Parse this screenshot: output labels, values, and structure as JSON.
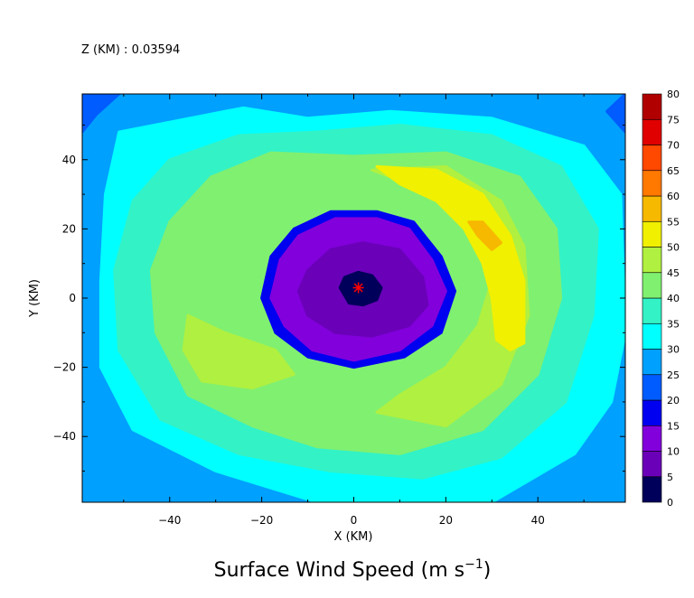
{
  "chart_data": {
    "type": "heatmap",
    "subtitle": "Z (KM) : 0.03594",
    "title_text": "Surface Wind Speed (m s",
    "title_exponent": "−1",
    "title_close": ")",
    "xlabel": "X (KM)",
    "ylabel": "Y (KM)",
    "xlim": [
      -59,
      59
    ],
    "ylim": [
      -59,
      59
    ],
    "xticks": [
      -40,
      -20,
      0,
      20,
      40
    ],
    "xtick_labels": [
      "−40",
      "−20",
      "0",
      "20",
      "40"
    ],
    "yticks": [
      -40,
      -20,
      0,
      20,
      40
    ],
    "ytick_labels": [
      "−40",
      "−20",
      "0",
      "20",
      "40"
    ],
    "colorbar": {
      "levels": [
        0,
        5,
        10,
        15,
        20,
        25,
        30,
        35,
        40,
        45,
        50,
        55,
        60,
        65,
        70,
        75,
        80
      ],
      "labels": [
        "0",
        "5",
        "10",
        "15",
        "20",
        "25",
        "30",
        "35",
        "40",
        "45",
        "50",
        "55",
        "60",
        "65",
        "70",
        "75",
        "80"
      ],
      "colors": [
        "#00005a",
        "#6a00b8",
        "#8200dc",
        "#0000f0",
        "#005cff",
        "#00a0ff",
        "#00ffff",
        "#33f2c6",
        "#80f070",
        "#b0f040",
        "#f0f000",
        "#f7b800",
        "#ff7800",
        "#ff4800",
        "#e00000",
        "#b00000"
      ]
    },
    "center_marker": {
      "x": 1,
      "y": 3,
      "color": "#ff0000"
    },
    "contours": [
      {
        "level_range": [
          25,
          30
        ],
        "polygons": [
          [
            [
              -59,
              -59
            ],
            [
              59,
              -59
            ],
            [
              59,
              59
            ],
            [
              -59,
              59
            ]
          ]
        ]
      },
      {
        "level_range": [
          20,
          25
        ],
        "polygons": [
          [
            [
              -59,
              59
            ],
            [
              -51,
              59
            ],
            [
              -56,
              53
            ],
            [
              -59,
              48
            ]
          ],
          [
            [
              59,
              59
            ],
            [
              59,
              48
            ],
            [
              55,
              54
            ]
          ]
        ]
      },
      {
        "level_range": [
          30,
          35
        ],
        "polygons": [
          [
            [
              -51,
              48
            ],
            [
              -24,
              55
            ],
            [
              -10,
              52
            ],
            [
              8,
              54
            ],
            [
              30,
              52
            ],
            [
              50,
              44
            ],
            [
              58,
              30
            ],
            [
              59,
              -10
            ],
            [
              56,
              -30
            ],
            [
              48,
              -45
            ],
            [
              30,
              -59
            ],
            [
              -8,
              -59
            ],
            [
              -30,
              -50
            ],
            [
              -48,
              -38
            ],
            [
              -55,
              -20
            ],
            [
              -55,
              5
            ],
            [
              -54,
              30
            ]
          ]
        ]
      },
      {
        "level_range": [
          35,
          40
        ],
        "polygons": [
          [
            [
              -40,
              40
            ],
            [
              -25,
              47
            ],
            [
              -8,
              48
            ],
            [
              10,
              50
            ],
            [
              30,
              47
            ],
            [
              45,
              38
            ],
            [
              53,
              20
            ],
            [
              52,
              -5
            ],
            [
              46,
              -30
            ],
            [
              32,
              -46
            ],
            [
              15,
              -52
            ],
            [
              -5,
              -50
            ],
            [
              -25,
              -45
            ],
            [
              -42,
              -35
            ],
            [
              -51,
              -15
            ],
            [
              -52,
              8
            ],
            [
              -48,
              28
            ]
          ]
        ]
      },
      {
        "level_range": [
          40,
          45
        ],
        "polygons": [
          [
            [
              -31,
              35
            ],
            [
              -18,
              42
            ],
            [
              0,
              41
            ],
            [
              20,
              42
            ],
            [
              36,
              35
            ],
            [
              44,
              20
            ],
            [
              45,
              0
            ],
            [
              40,
              -22
            ],
            [
              28,
              -38
            ],
            [
              10,
              -45
            ],
            [
              -8,
              -43
            ],
            [
              -22,
              -37
            ],
            [
              -36,
              -28
            ],
            [
              -43,
              -10
            ],
            [
              -44,
              8
            ],
            [
              -40,
              22
            ]
          ]
        ]
      },
      {
        "level_range": [
          45,
          50
        ],
        "polygons": [
          [
            [
              -36,
              -5
            ],
            [
              -28,
              -10
            ],
            [
              -17,
              -15
            ],
            [
              -13,
              -22
            ],
            [
              -22,
              -26
            ],
            [
              -33,
              -24
            ],
            [
              -37,
              -15
            ]
          ],
          [
            [
              5,
              -33
            ],
            [
              20,
              -37
            ],
            [
              32,
              -25
            ],
            [
              38,
              -5
            ],
            [
              37,
              15
            ],
            [
              32,
              28
            ],
            [
              20,
              38
            ],
            [
              4,
              37
            ],
            [
              12,
              33
            ],
            [
              22,
              28
            ],
            [
              28,
              18
            ],
            [
              30,
              5
            ],
            [
              27,
              -8
            ],
            [
              20,
              -20
            ],
            [
              10,
              -28
            ]
          ]
        ]
      },
      {
        "level_range": [
          50,
          55
        ],
        "polygons": [
          [
            [
              5,
              38
            ],
            [
              18,
              37
            ],
            [
              28,
              30
            ],
            [
              34,
              18
            ],
            [
              37,
              5
            ],
            [
              37,
              -13
            ],
            [
              34,
              -15
            ],
            [
              31,
              -12
            ],
            [
              30,
              0
            ],
            [
              28,
              10
            ],
            [
              24,
              20
            ],
            [
              18,
              28
            ],
            [
              10,
              33
            ]
          ]
        ]
      },
      {
        "level_range": [
          55,
          60
        ],
        "polygons": [
          [
            [
              25,
              22
            ],
            [
              28,
              22
            ],
            [
              32,
              16
            ],
            [
              30,
              14
            ],
            [
              27,
              18
            ]
          ]
        ]
      },
      {
        "level_range": [
          15,
          20
        ],
        "polygons": [
          [
            [
              -18,
              12
            ],
            [
              -13,
              20
            ],
            [
              -5,
              25
            ],
            [
              5,
              25
            ],
            [
              13,
              22
            ],
            [
              19,
              12
            ],
            [
              22,
              2
            ],
            [
              19,
              -10
            ],
            [
              11,
              -17
            ],
            [
              0,
              -20
            ],
            [
              -10,
              -17
            ],
            [
              -17,
              -10
            ],
            [
              -20,
              0
            ]
          ]
        ]
      },
      {
        "level_range": [
          10,
          15
        ],
        "polygons": [
          [
            [
              -16,
              11
            ],
            [
              -12,
              18
            ],
            [
              -4,
              23
            ],
            [
              5,
              23
            ],
            [
              12,
              20
            ],
            [
              17,
              11
            ],
            [
              20,
              2
            ],
            [
              17,
              -8
            ],
            [
              10,
              -15
            ],
            [
              0,
              -18
            ],
            [
              -9,
              -15
            ],
            [
              -15,
              -8
            ],
            [
              -18,
              0
            ]
          ]
        ]
      },
      {
        "level_range": [
          5,
          10
        ],
        "polygons": [
          [
            [
              -10,
              8
            ],
            [
              -5,
              14
            ],
            [
              2,
              16
            ],
            [
              10,
              14
            ],
            [
              15,
              6
            ],
            [
              16,
              -2
            ],
            [
              12,
              -8
            ],
            [
              4,
              -11
            ],
            [
              -4,
              -10
            ],
            [
              -10,
              -5
            ],
            [
              -12,
              2
            ]
          ]
        ]
      },
      {
        "level_range": [
          0,
          5
        ],
        "polygons": [
          [
            [
              -3,
              3
            ],
            [
              -2,
              6
            ],
            [
              1,
              7.5
            ],
            [
              4,
              6.5
            ],
            [
              6,
              3
            ],
            [
              5,
              -0.5
            ],
            [
              2,
              -2
            ],
            [
              -1,
              -1.5
            ]
          ]
        ]
      }
    ]
  }
}
